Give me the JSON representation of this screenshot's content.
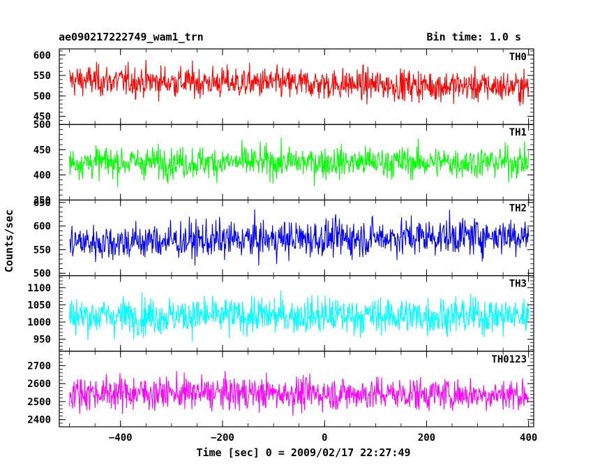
{
  "header": {
    "title_left": "ae090217222749_wam1_trn",
    "title_right": "Bin time: 1.0 s"
  },
  "chart_data": {
    "type": "line",
    "xlabel": "Time [sec] 0 = 2009/02/17 22:27:49",
    "ylabel": "Counts/sec",
    "xlim": [
      -520,
      410
    ],
    "data_x_range": [
      -500,
      400
    ],
    "bin_time_s": 1.0,
    "x_ticks": [
      -400,
      -200,
      0,
      200,
      400
    ],
    "panels": [
      {
        "name": "TH0",
        "color": "#ff0000",
        "ylim": [
          430,
          615
        ],
        "yticks": [
          450,
          500,
          550,
          600
        ],
        "mean": 530,
        "amplitude": 27,
        "trend": -8
      },
      {
        "name": "TH1",
        "color": "#00ff00",
        "ylim": [
          350,
          500
        ],
        "yticks": [
          350,
          400,
          450,
          500
        ],
        "mean": 425,
        "amplitude": 22,
        "trend": 0
      },
      {
        "name": "TH2",
        "color": "#0000ff",
        "ylim": [
          495,
          655
        ],
        "yticks": [
          500,
          550,
          600,
          650
        ],
        "mean": 573,
        "amplitude": 28,
        "trend": 8
      },
      {
        "name": "TH3",
        "color": "#00ffff",
        "ylim": [
          915,
          1135
        ],
        "yticks": [
          950,
          1000,
          1050,
          1100
        ],
        "mean": 1018,
        "amplitude": 38,
        "trend": 0
      },
      {
        "name": "TH0123",
        "color": "#ff00ff",
        "ylim": [
          2360,
          2780
        ],
        "yticks": [
          2400,
          2500,
          2600,
          2700
        ],
        "mean": 2545,
        "amplitude": 65,
        "trend": -5
      }
    ]
  }
}
